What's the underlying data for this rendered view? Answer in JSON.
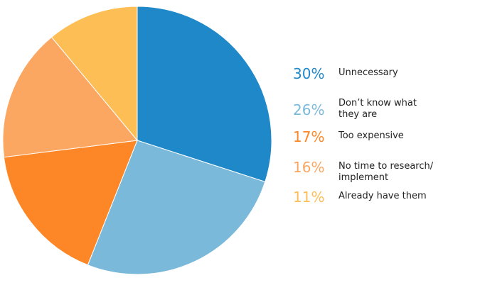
{
  "chart_data": {
    "type": "pie",
    "title": "",
    "series": [
      {
        "values": [
          30,
          26,
          17,
          16,
          11
        ],
        "categories": [
          "Unnecessary",
          "Don’t know what they are",
          "Too expensive",
          "No time to research/ implement",
          "Already have them"
        ]
      }
    ],
    "slices": [
      {
        "pct_label": "30%",
        "label": "Unnecessary",
        "value": 30,
        "color": "#1f88c9"
      },
      {
        "pct_label": "26%",
        "label": "Don’t know what they are",
        "value": 26,
        "color": "#7bb9da"
      },
      {
        "pct_label": "17%",
        "label": "Too expensive",
        "value": 17,
        "color": "#fd8726"
      },
      {
        "pct_label": "16%",
        "label": "No time to research/ implement",
        "value": 16,
        "color": "#fba762"
      },
      {
        "pct_label": "11%",
        "label": "Already have them",
        "value": 11,
        "color": "#fdbe55"
      }
    ],
    "start_angle": "12 o'clock",
    "direction": "clockwise",
    "legend_position": "right",
    "grid": false
  }
}
